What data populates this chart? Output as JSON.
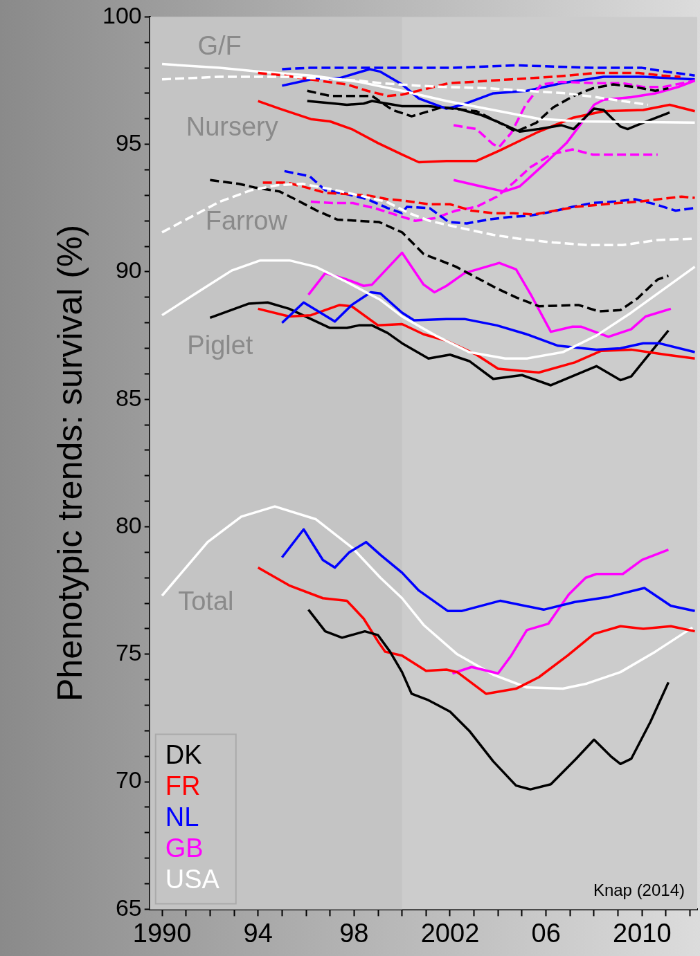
{
  "chart_data": {
    "type": "line",
    "ylabel": "Phenotypic trends: survival (%)",
    "xlim": [
      1989.5,
      2012.3
    ],
    "ylim": [
      65,
      100
    ],
    "xticks": [
      {
        "value": 1990,
        "label": "1990"
      },
      {
        "value": 1991,
        "label": null
      },
      {
        "value": 1992,
        "label": null
      },
      {
        "value": 1993,
        "label": null
      },
      {
        "value": 1994,
        "label": "94"
      },
      {
        "value": 1995,
        "label": null
      },
      {
        "value": 1996,
        "label": null
      },
      {
        "value": 1997,
        "label": null
      },
      {
        "value": 1998,
        "label": "98"
      },
      {
        "value": 1999,
        "label": null
      },
      {
        "value": 2000,
        "label": null
      },
      {
        "value": 2001,
        "label": null
      },
      {
        "value": 2002,
        "label": "2002"
      },
      {
        "value": 2003,
        "label": null
      },
      {
        "value": 2004,
        "label": null
      },
      {
        "value": 2005,
        "label": null
      },
      {
        "value": 2006,
        "label": "06"
      },
      {
        "value": 2007,
        "label": null
      },
      {
        "value": 2008,
        "label": null
      },
      {
        "value": 2009,
        "label": null
      },
      {
        "value": 2010,
        "label": "2010"
      },
      {
        "value": 2011,
        "label": null
      },
      {
        "value": 2012,
        "label": null
      }
    ],
    "yticks": [
      65,
      {
        "value": 66,
        "label": null
      },
      {
        "value": 67,
        "label": null
      },
      {
        "value": 68,
        "label": null
      },
      {
        "value": 69,
        "label": null
      },
      70,
      {
        "value": 71,
        "label": null
      },
      {
        "value": 72,
        "label": null
      },
      {
        "value": 73,
        "label": null
      },
      {
        "value": 74,
        "label": null
      },
      75,
      {
        "value": 76,
        "label": null
      },
      {
        "value": 77,
        "label": null
      },
      {
        "value": 78,
        "label": null
      },
      {
        "value": 79,
        "label": null
      },
      80,
      {
        "value": 81,
        "label": null
      },
      {
        "value": 82,
        "label": null
      },
      {
        "value": 83,
        "label": null
      },
      {
        "value": 84,
        "label": null
      },
      85,
      {
        "value": 86,
        "label": null
      },
      {
        "value": 87,
        "label": null
      },
      {
        "value": 88,
        "label": null
      },
      {
        "value": 89,
        "label": null
      },
      90,
      {
        "value": 91,
        "label": null
      },
      {
        "value": 92,
        "label": null
      },
      {
        "value": 93,
        "label": null
      },
      {
        "value": 94,
        "label": null
      },
      95,
      {
        "value": 96,
        "label": null
      },
      {
        "value": 97,
        "label": null
      },
      {
        "value": 98,
        "label": null
      },
      {
        "value": 99,
        "label": null
      },
      100
    ],
    "grid": false,
    "legend": "bottom left",
    "marker": "none",
    "bands": [
      {
        "axis": "x",
        "from": 1989.5,
        "to": 2000,
        "color": "#c4c4c4"
      }
    ],
    "annotations": [
      "G/F",
      "Nursery",
      "Farrow",
      "Piglet",
      "Total",
      "Knap (2014)"
    ],
    "series": [
      {
        "color": "#ffffff",
        "line_style": "dashed",
        "x": [
          1990,
          1992.4,
          1995.3,
          1998.2,
          1999.1,
          2000.7,
          2001.85,
          2003.6,
          2005.2,
          2006.85,
          2008.1,
          2010.25
        ],
        "values": [
          97.55,
          97.65,
          97.65,
          97.5,
          97.4,
          97.3,
          97.25,
          97.2,
          97.1,
          97.0,
          96.85,
          96.55
        ]
      },
      {
        "color": "#ff0000",
        "line_style": "dashed",
        "x": [
          1994.0,
          1995.1,
          1996.9,
          1997.7,
          1998.55,
          1999.4,
          2000,
          2001.1,
          2001.95,
          2002.9,
          2004.55,
          2006.3,
          2008.1,
          2009.85,
          2010.85,
          2011.6
        ],
        "values": [
          97.8,
          97.7,
          97.45,
          97.35,
          97.1,
          96.9,
          96.95,
          97.2,
          97.4,
          97.45,
          97.55,
          97.65,
          97.8,
          97.8,
          97.7,
          97.65
        ]
      },
      {
        "color": "#0000ff",
        "line_style": "dashed",
        "x": [
          1995.0,
          1996.15,
          1998,
          2000,
          2002,
          2004.75,
          2008,
          2010,
          2011,
          2012.2
        ],
        "values": [
          97.95,
          98.0,
          98.0,
          98.0,
          98.0,
          98.1,
          98.0,
          98.0,
          97.85,
          97.7
        ]
      },
      {
        "color": "#000000",
        "line_style": "dashed",
        "x": [
          1996.05,
          1997.0,
          1997.95,
          1998.75,
          1999.6,
          2000.4,
          2001.65,
          2003.1,
          2003.95,
          2004.75,
          2005.6,
          2006.3,
          2007.15,
          2007.95,
          2008.8,
          2009.7,
          2010.55,
          2011.1
        ],
        "values": [
          97.1,
          96.9,
          96.9,
          96.9,
          96.35,
          96.1,
          96.45,
          96.3,
          95.9,
          95.5,
          95.85,
          96.45,
          96.9,
          97.2,
          97.35,
          97.25,
          97.1,
          97.2
        ]
      },
      {
        "color": "#ff00ff",
        "line_style": "dashed",
        "x": [
          2002.15,
          2003.1,
          2003.8,
          2004.05,
          2004.55,
          2005.15,
          2005.8,
          2006.65,
          2008.1,
          2009.2,
          2010.05,
          2010.9,
          2012.2
        ],
        "values": [
          95.75,
          95.6,
          95.0,
          94.9,
          95.45,
          96.55,
          97.35,
          97.45,
          97.4,
          97.4,
          97.25,
          97.25,
          97.5
        ]
      },
      {
        "color": "#ffffff",
        "line_style": "solid",
        "x": [
          1990,
          1992.4,
          1994.1,
          1996.2,
          1998.2,
          2000,
          2001.85,
          2003.8,
          2005.7,
          2007.45,
          2012.2
        ],
        "values": [
          98.15,
          98.0,
          97.85,
          97.7,
          97.45,
          97.1,
          96.7,
          96.35,
          96.0,
          95.9,
          95.85
        ]
      },
      {
        "color": "#0000ff",
        "line_style": "solid",
        "x": [
          1995.0,
          1996.2,
          1997.4,
          1998.65,
          1999.1,
          2000,
          2000.7,
          2001.85,
          2002.5,
          2003.8,
          2005.2,
          2006.65,
          2008.4,
          2010.05,
          2012.2
        ],
        "values": [
          97.3,
          97.55,
          97.6,
          97.95,
          97.85,
          97.35,
          96.8,
          96.4,
          96.55,
          97.0,
          97.1,
          97.4,
          97.65,
          97.65,
          97.55
        ]
      },
      {
        "color": "#000000",
        "line_style": "solid",
        "x": [
          1996.05,
          1997.2,
          1997.7,
          1998.4,
          1998.75,
          2000,
          2001.1,
          2002.3,
          2003.3,
          2003.95,
          2004.9,
          2005.7,
          2006.65,
          2007.15,
          2008.0,
          2008.4,
          2009.1,
          2009.4,
          2010.05,
          2011.15
        ],
        "values": [
          96.7,
          96.6,
          96.55,
          96.6,
          96.7,
          96.5,
          96.5,
          96.4,
          96.15,
          95.9,
          95.5,
          95.6,
          95.75,
          95.6,
          96.4,
          96.35,
          95.7,
          95.6,
          95.85,
          96.25
        ]
      },
      {
        "color": "#ff0000",
        "line_style": "solid",
        "x": [
          1994.0,
          1994.9,
          1996.2,
          1997.0,
          1997.9,
          1999.0,
          2000,
          2000.7,
          2001.85,
          2003.1,
          2004.05,
          2005.7,
          2007.15,
          2008.4,
          2010.05,
          2011.15,
          2012.2
        ],
        "values": [
          96.7,
          96.4,
          95.99,
          95.9,
          95.6,
          95.05,
          94.6,
          94.3,
          94.35,
          94.35,
          94.75,
          95.5,
          96.05,
          96.3,
          96.35,
          96.55,
          96.3
        ]
      },
      {
        "color": "#ff00ff",
        "line_style": "solid",
        "x": [
          2002.15,
          2003.3,
          2004.25,
          2004.9,
          2005.9,
          2006.85,
          2007.45,
          2008.0,
          2008.4,
          2009.55,
          2010.55,
          2011.5,
          2012.2
        ],
        "values": [
          93.6,
          93.35,
          93.15,
          93.35,
          94.2,
          95.05,
          95.8,
          96.55,
          96.75,
          96.85,
          97.0,
          97.25,
          97.5
        ]
      },
      {
        "color": "#ffffff",
        "line_style": "dashed",
        "x": [
          1990,
          1991.0,
          1992.4,
          1993.7,
          1994.8,
          1995.85,
          1997.0,
          1998.2,
          1999.35,
          2000.3,
          2001.15,
          2002.3,
          2003.8,
          2004.85,
          2006.3,
          2007.75,
          2009.2,
          2010.65,
          2012.2
        ],
        "values": [
          91.55,
          92.05,
          92.75,
          93.2,
          93.4,
          93.45,
          93.25,
          93.0,
          92.75,
          92.3,
          92.0,
          91.75,
          91.45,
          91.3,
          91.15,
          91.05,
          91.05,
          91.25,
          91.3
        ]
      },
      {
        "color": "#000000",
        "line_style": "dashed",
        "x": [
          1992.0,
          1993.2,
          1993.9,
          1994.9,
          1995.65,
          1996.45,
          1997.3,
          1998.2,
          1999.05,
          2000,
          2000.9,
          2002.25,
          2003.95,
          2004.75,
          2005.7,
          2007.35,
          2008.2,
          2009.1,
          2009.8,
          2010.65,
          2011.1
        ],
        "values": [
          93.6,
          93.45,
          93.3,
          93.15,
          92.8,
          92.4,
          92.05,
          92.0,
          91.95,
          91.55,
          90.7,
          90.2,
          89.35,
          89.0,
          88.65,
          88.7,
          88.45,
          88.5,
          88.95,
          89.7,
          89.85
        ]
      },
      {
        "color": "#ff0000",
        "line_style": "dashed",
        "x": [
          1994.2,
          1995.2,
          1996.05,
          1996.8,
          1997.7,
          1998.55,
          1999.4,
          2000,
          2001.15,
          2002.0,
          2002.9,
          2003.8,
          2004.65,
          2005.5,
          2007.25,
          2009.0,
          2009.85,
          2010.7,
          2011.65,
          2012.2
        ],
        "values": [
          93.5,
          93.5,
          93.3,
          93.1,
          93.05,
          93.0,
          92.85,
          92.8,
          92.65,
          92.65,
          92.4,
          92.3,
          92.3,
          92.25,
          92.55,
          92.7,
          92.75,
          92.85,
          92.95,
          92.9
        ]
      },
      {
        "color": "#0000ff",
        "line_style": "dashed",
        "x": [
          1995.1,
          1996.15,
          1996.8,
          1997.7,
          1998.55,
          1999.4,
          2000,
          2000.2,
          2001.15,
          2001.95,
          2002.7,
          2003.6,
          2004.45,
          2005.3,
          2006.2,
          2007.1,
          2007.95,
          2008.8,
          2009.7,
          2010.55,
          2011.4,
          2012.15
        ],
        "values": [
          93.95,
          93.75,
          93.2,
          93.05,
          92.85,
          92.5,
          92.3,
          92.55,
          92.5,
          91.95,
          91.9,
          92.05,
          92.15,
          92.2,
          92.35,
          92.55,
          92.7,
          92.75,
          92.85,
          92.65,
          92.4,
          92.5
        ]
      },
      {
        "color": "#ff00ff",
        "line_style": "dashed",
        "x": [
          1996.2,
          1997.1,
          1997.95,
          1998.85,
          1999.7,
          2000.55,
          2001.35,
          2002.25,
          2003.1,
          2003.95,
          2004.65,
          2005.35,
          2006.2,
          2007.1,
          2007.95,
          2009.55,
          2010.65
        ],
        "values": [
          92.75,
          92.7,
          92.7,
          92.5,
          92.25,
          92.0,
          92.1,
          92.4,
          92.55,
          92.95,
          93.5,
          94.1,
          94.6,
          94.8,
          94.6,
          94.6,
          94.6
        ]
      },
      {
        "color": "#ffffff",
        "line_style": "solid",
        "x": [
          1990,
          1991.4,
          1992.9,
          1994.1,
          1995.3,
          1996.4,
          1997.7,
          1999.1,
          2000,
          2001.4,
          2002.8,
          2004.3,
          2005.2,
          2006.7,
          2008.1,
          2009.55,
          2012.2
        ],
        "values": [
          88.3,
          89.15,
          90.05,
          90.45,
          90.45,
          90.2,
          89.6,
          88.9,
          88.25,
          87.5,
          86.85,
          86.6,
          86.6,
          86.85,
          87.5,
          88.4,
          90.2
        ]
      },
      {
        "color": "#0000ff",
        "line_style": "solid",
        "x": [
          1995.0,
          1995.9,
          1996.6,
          1997.2,
          1997.9,
          1998.7,
          1999.1,
          2000,
          2000.5,
          2001.85,
          2002.6,
          2003.95,
          2005.2,
          2006.5,
          2008.1,
          2009.1,
          2010.05,
          2010.7,
          2012.2
        ],
        "values": [
          88.0,
          88.8,
          88.4,
          88.05,
          88.7,
          89.2,
          89.15,
          88.4,
          88.1,
          88.15,
          88.15,
          87.9,
          87.55,
          87.1,
          86.95,
          87.0,
          87.2,
          87.2,
          86.85
        ]
      },
      {
        "color": "#ff0000",
        "line_style": "solid",
        "x": [
          1994.0,
          1995.3,
          1996.2,
          1997.4,
          1997.9,
          1999.0,
          2000,
          2000.9,
          2001.85,
          2003.1,
          2004.0,
          2005.7,
          2007.2,
          2008.3,
          2009.55,
          2011.0,
          2012.2
        ],
        "values": [
          88.55,
          88.25,
          88.3,
          88.7,
          88.65,
          87.9,
          87.95,
          87.55,
          87.3,
          86.75,
          86.2,
          86.05,
          86.45,
          86.9,
          86.95,
          86.75,
          86.6
        ]
      },
      {
        "color": "#000000",
        "line_style": "solid",
        "x": [
          1992.0,
          1993.6,
          1994.4,
          1995.3,
          1996.2,
          1997.0,
          1997.7,
          1998.2,
          1998.75,
          1999.4,
          2000,
          2001.1,
          2002.0,
          2002.8,
          2003.8,
          2005.0,
          2006.2,
          2008.1,
          2009.1,
          2009.55,
          2011.1
        ],
        "values": [
          88.2,
          88.75,
          88.8,
          88.55,
          88.15,
          87.8,
          87.8,
          87.9,
          87.9,
          87.6,
          87.2,
          86.6,
          86.75,
          86.5,
          85.8,
          85.95,
          85.55,
          86.3,
          85.75,
          85.9,
          87.7
        ]
      },
      {
        "color": "#ff00ff",
        "line_style": "solid",
        "x": [
          1996.1,
          1996.8,
          1997.7,
          1998.4,
          1998.75,
          2000,
          2000.9,
          2001.35,
          2001.85,
          2002.6,
          2004.05,
          2004.75,
          2005.4,
          2006.2,
          2007.1,
          2007.45,
          2008.6,
          2009.55,
          2010.15,
          2011.2
        ],
        "values": [
          89.1,
          89.95,
          89.7,
          89.45,
          89.5,
          90.75,
          89.5,
          89.2,
          89.45,
          89.95,
          90.35,
          90.1,
          89.05,
          87.65,
          87.85,
          87.85,
          87.45,
          87.75,
          88.25,
          88.55
        ]
      },
      {
        "name": "DK",
        "color": "#000000",
        "line_style": "solid",
        "x": [
          1996.1,
          1996.8,
          1997.5,
          1998.45,
          1999.0,
          1999.5,
          2000,
          2000.4,
          2001.1,
          2002.0,
          2002.8,
          2003.8,
          2004.75,
          2005.35,
          2006.2,
          2007.25,
          2008.0,
          2008.7,
          2009.1,
          2009.55,
          2010.35,
          2011.1
        ],
        "values": [
          76.75,
          75.9,
          75.65,
          75.9,
          75.75,
          75.1,
          74.3,
          73.45,
          73.2,
          72.75,
          72.0,
          70.8,
          69.85,
          69.7,
          69.9,
          70.9,
          71.65,
          71.0,
          70.7,
          70.9,
          72.35,
          73.9
        ]
      },
      {
        "name": "FR",
        "color": "#ff0000",
        "line_style": "solid",
        "x": [
          1994.0,
          1995.3,
          1996.7,
          1997.7,
          1998.4,
          1999.0,
          1999.3,
          2000,
          2001.0,
          2001.85,
          2002.3,
          2003.5,
          2004.75,
          2005.7,
          2006.9,
          2008.0,
          2009.1,
          2010.05,
          2011.2,
          2012.2
        ],
        "values": [
          78.4,
          77.7,
          77.2,
          77.1,
          76.4,
          75.5,
          75.1,
          74.95,
          74.35,
          74.4,
          74.3,
          73.45,
          73.65,
          74.1,
          74.95,
          75.8,
          76.1,
          76.0,
          76.1,
          75.9
        ]
      },
      {
        "name": "NL",
        "color": "#0000ff",
        "line_style": "solid",
        "x": [
          1995.0,
          1995.9,
          1996.7,
          1997.2,
          1997.8,
          1998.5,
          1999.1,
          2000,
          2000.7,
          2001.9,
          2002.5,
          2004.1,
          2005.9,
          2007.2,
          2008.6,
          2010.1,
          2011.2,
          2012.2
        ],
        "values": [
          78.8,
          79.9,
          78.7,
          78.4,
          79.0,
          79.4,
          78.9,
          78.2,
          77.5,
          76.7,
          76.7,
          77.1,
          76.75,
          77.05,
          77.25,
          77.6,
          76.9,
          76.7
        ]
      },
      {
        "name": "GB",
        "color": "#ff00ff",
        "line_style": "solid",
        "x": [
          2002.1,
          2002.9,
          2004.0,
          2004.55,
          2005.2,
          2006.1,
          2006.95,
          2007.65,
          2008.1,
          2009.2,
          2010.0,
          2011.1
        ],
        "values": [
          74.25,
          74.5,
          74.25,
          74.95,
          75.95,
          76.2,
          77.35,
          78.0,
          78.15,
          78.15,
          78.7,
          79.1
        ]
      },
      {
        "name": "USA",
        "color": "#ffffff",
        "line_style": "solid",
        "x": [
          1990,
          1991.9,
          1993.3,
          1994.7,
          1996.4,
          1997.9,
          1999.1,
          2000,
          2000.9,
          2002.3,
          2003.8,
          2005.2,
          2006.7,
          2007.7,
          2009.1,
          2010.55,
          2012.1
        ],
        "values": [
          77.3,
          79.4,
          80.4,
          80.8,
          80.3,
          79.2,
          78.0,
          77.2,
          76.15,
          75.0,
          74.2,
          73.7,
          73.65,
          73.85,
          74.3,
          75.1,
          76.05
        ]
      }
    ]
  }
}
